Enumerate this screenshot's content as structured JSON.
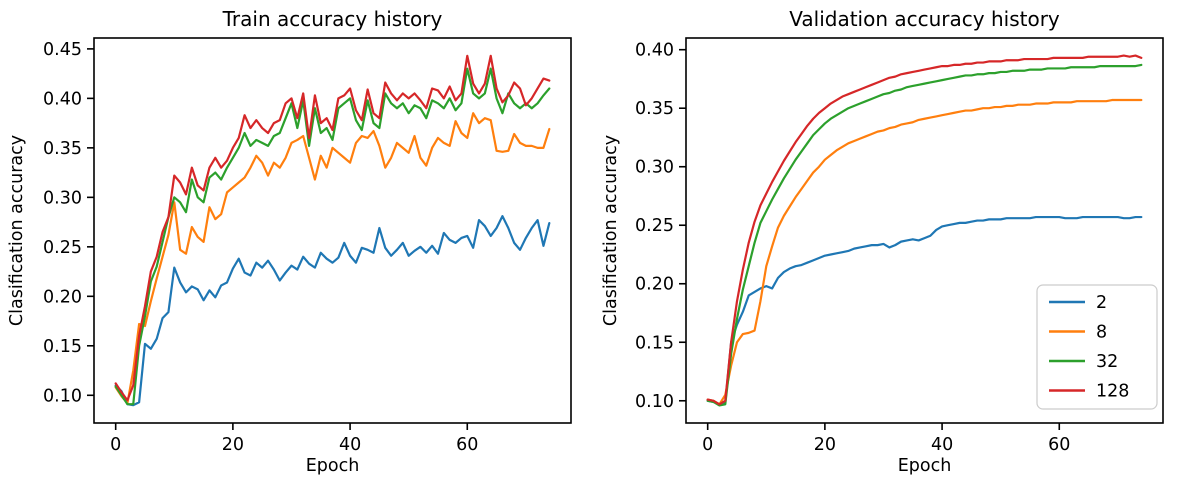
{
  "figure": {
    "background": "#ffffff",
    "text_color": "#000000",
    "spine_color": "#000000",
    "legend_border_color": "#cccccc"
  },
  "chart_data": [
    {
      "type": "line",
      "title": "Train accuracy history",
      "xlabel": "Epoch",
      "ylabel": "Clasification accuracy",
      "xlim": [
        -3.7,
        77.7
      ],
      "ylim": [
        0.072,
        0.461
      ],
      "xticks": [
        0,
        20,
        40,
        60
      ],
      "yticks": [
        0.1,
        0.15,
        0.2,
        0.25,
        0.3,
        0.35,
        0.4,
        0.45
      ],
      "grid": false,
      "legend": null,
      "x_start": 0,
      "series": [
        {
          "name": "2",
          "color": "#1f77b4",
          "values": [
            0.11,
            0.104,
            0.091,
            0.09,
            0.093,
            0.152,
            0.147,
            0.157,
            0.178,
            0.184,
            0.229,
            0.214,
            0.204,
            0.21,
            0.207,
            0.196,
            0.206,
            0.199,
            0.211,
            0.214,
            0.228,
            0.238,
            0.224,
            0.221,
            0.234,
            0.229,
            0.236,
            0.227,
            0.216,
            0.224,
            0.231,
            0.227,
            0.24,
            0.233,
            0.229,
            0.244,
            0.238,
            0.234,
            0.239,
            0.254,
            0.241,
            0.234,
            0.249,
            0.247,
            0.244,
            0.269,
            0.249,
            0.241,
            0.247,
            0.254,
            0.241,
            0.246,
            0.25,
            0.244,
            0.251,
            0.243,
            0.264,
            0.257,
            0.254,
            0.259,
            0.261,
            0.249,
            0.277,
            0.271,
            0.261,
            0.269,
            0.281,
            0.269,
            0.254,
            0.247,
            0.259,
            0.269,
            0.277,
            0.251,
            0.274
          ]
        },
        {
          "name": "8",
          "color": "#ff7f0e",
          "values": [
            0.108,
            0.099,
            0.092,
            0.125,
            0.172,
            0.17,
            0.195,
            0.218,
            0.24,
            0.262,
            0.295,
            0.247,
            0.243,
            0.27,
            0.26,
            0.255,
            0.29,
            0.278,
            0.283,
            0.305,
            0.31,
            0.315,
            0.32,
            0.33,
            0.342,
            0.335,
            0.322,
            0.335,
            0.33,
            0.34,
            0.355,
            0.358,
            0.362,
            0.34,
            0.318,
            0.342,
            0.33,
            0.35,
            0.345,
            0.34,
            0.335,
            0.355,
            0.362,
            0.36,
            0.367,
            0.352,
            0.33,
            0.34,
            0.355,
            0.35,
            0.345,
            0.362,
            0.34,
            0.332,
            0.35,
            0.36,
            0.355,
            0.352,
            0.377,
            0.365,
            0.36,
            0.385,
            0.375,
            0.38,
            0.378,
            0.347,
            0.346,
            0.347,
            0.364,
            0.355,
            0.352,
            0.352,
            0.35,
            0.35,
            0.369
          ]
        },
        {
          "name": "32",
          "color": "#2ca02c",
          "values": [
            0.109,
            0.1,
            0.091,
            0.091,
            0.15,
            0.18,
            0.215,
            0.23,
            0.255,
            0.28,
            0.3,
            0.295,
            0.285,
            0.318,
            0.3,
            0.295,
            0.32,
            0.325,
            0.318,
            0.33,
            0.34,
            0.35,
            0.365,
            0.352,
            0.358,
            0.355,
            0.352,
            0.362,
            0.365,
            0.38,
            0.395,
            0.37,
            0.398,
            0.352,
            0.39,
            0.365,
            0.37,
            0.358,
            0.39,
            0.395,
            0.4,
            0.378,
            0.368,
            0.398,
            0.375,
            0.37,
            0.405,
            0.395,
            0.39,
            0.395,
            0.385,
            0.393,
            0.39,
            0.38,
            0.398,
            0.395,
            0.39,
            0.4,
            0.388,
            0.395,
            0.43,
            0.405,
            0.4,
            0.405,
            0.43,
            0.4,
            0.385,
            0.405,
            0.395,
            0.39,
            0.395,
            0.39,
            0.395,
            0.403,
            0.41
          ]
        },
        {
          "name": "128",
          "color": "#d62728",
          "values": [
            0.112,
            0.103,
            0.095,
            0.11,
            0.16,
            0.19,
            0.225,
            0.24,
            0.265,
            0.28,
            0.322,
            0.315,
            0.303,
            0.33,
            0.312,
            0.307,
            0.33,
            0.34,
            0.33,
            0.337,
            0.35,
            0.36,
            0.383,
            0.37,
            0.378,
            0.37,
            0.365,
            0.375,
            0.378,
            0.395,
            0.4,
            0.38,
            0.405,
            0.36,
            0.403,
            0.375,
            0.38,
            0.368,
            0.4,
            0.403,
            0.41,
            0.388,
            0.378,
            0.409,
            0.385,
            0.38,
            0.416,
            0.405,
            0.398,
            0.405,
            0.4,
            0.405,
            0.398,
            0.39,
            0.41,
            0.408,
            0.4,
            0.412,
            0.398,
            0.405,
            0.443,
            0.415,
            0.405,
            0.415,
            0.443,
            0.41,
            0.396,
            0.403,
            0.416,
            0.41,
            0.393,
            0.4,
            0.41,
            0.42,
            0.418
          ]
        }
      ]
    },
    {
      "type": "line",
      "title": "Validation accuracy history",
      "xlabel": "Epoch",
      "ylabel": "Clasification accuracy",
      "xlim": [
        -3.7,
        77.7
      ],
      "ylim": [
        0.081,
        0.41
      ],
      "xticks": [
        0,
        20,
        40,
        60
      ],
      "yticks": [
        0.1,
        0.15,
        0.2,
        0.25,
        0.3,
        0.35,
        0.4
      ],
      "grid": false,
      "legend": {
        "labels": [
          "2",
          "8",
          "32",
          "128"
        ],
        "position": "lower right"
      },
      "x_start": 0,
      "series": [
        {
          "name": "2",
          "color": "#1f77b4",
          "values": [
            0.1,
            0.099,
            0.097,
            0.098,
            0.15,
            0.165,
            0.176,
            0.19,
            0.193,
            0.196,
            0.198,
            0.196,
            0.205,
            0.21,
            0.213,
            0.215,
            0.216,
            0.218,
            0.22,
            0.222,
            0.224,
            0.225,
            0.226,
            0.227,
            0.228,
            0.23,
            0.231,
            0.232,
            0.233,
            0.233,
            0.234,
            0.231,
            0.233,
            0.236,
            0.237,
            0.238,
            0.237,
            0.239,
            0.241,
            0.246,
            0.249,
            0.25,
            0.251,
            0.252,
            0.252,
            0.253,
            0.254,
            0.254,
            0.255,
            0.255,
            0.255,
            0.256,
            0.256,
            0.256,
            0.256,
            0.256,
            0.257,
            0.257,
            0.257,
            0.257,
            0.257,
            0.256,
            0.256,
            0.256,
            0.257,
            0.257,
            0.257,
            0.257,
            0.257,
            0.257,
            0.257,
            0.256,
            0.256,
            0.257,
            0.257
          ]
        },
        {
          "name": "8",
          "color": "#ff7f0e",
          "values": [
            0.101,
            0.1,
            0.097,
            0.105,
            0.13,
            0.15,
            0.157,
            0.158,
            0.16,
            0.185,
            0.215,
            0.232,
            0.248,
            0.258,
            0.266,
            0.274,
            0.281,
            0.288,
            0.295,
            0.3,
            0.306,
            0.31,
            0.314,
            0.317,
            0.32,
            0.322,
            0.324,
            0.326,
            0.328,
            0.33,
            0.331,
            0.333,
            0.334,
            0.336,
            0.337,
            0.338,
            0.34,
            0.341,
            0.342,
            0.343,
            0.344,
            0.345,
            0.346,
            0.347,
            0.348,
            0.348,
            0.349,
            0.35,
            0.35,
            0.351,
            0.351,
            0.352,
            0.352,
            0.353,
            0.353,
            0.353,
            0.354,
            0.354,
            0.354,
            0.355,
            0.355,
            0.355,
            0.355,
            0.356,
            0.356,
            0.356,
            0.356,
            0.356,
            0.356,
            0.357,
            0.357,
            0.357,
            0.357,
            0.357,
            0.357
          ]
        },
        {
          "name": "32",
          "color": "#2ca02c",
          "values": [
            0.1,
            0.099,
            0.096,
            0.097,
            0.14,
            0.17,
            0.195,
            0.215,
            0.235,
            0.252,
            0.262,
            0.272,
            0.281,
            0.29,
            0.298,
            0.306,
            0.313,
            0.32,
            0.327,
            0.332,
            0.337,
            0.341,
            0.344,
            0.347,
            0.35,
            0.352,
            0.354,
            0.356,
            0.358,
            0.36,
            0.362,
            0.363,
            0.365,
            0.366,
            0.368,
            0.369,
            0.37,
            0.371,
            0.372,
            0.373,
            0.374,
            0.375,
            0.376,
            0.377,
            0.378,
            0.378,
            0.379,
            0.379,
            0.38,
            0.38,
            0.381,
            0.381,
            0.382,
            0.382,
            0.382,
            0.383,
            0.383,
            0.383,
            0.384,
            0.384,
            0.384,
            0.384,
            0.385,
            0.385,
            0.385,
            0.385,
            0.385,
            0.386,
            0.386,
            0.386,
            0.386,
            0.386,
            0.386,
            0.386,
            0.387
          ]
        },
        {
          "name": "128",
          "color": "#d62728",
          "values": [
            0.101,
            0.1,
            0.097,
            0.1,
            0.15,
            0.185,
            0.212,
            0.235,
            0.253,
            0.267,
            0.277,
            0.287,
            0.296,
            0.305,
            0.313,
            0.321,
            0.328,
            0.335,
            0.341,
            0.346,
            0.35,
            0.354,
            0.357,
            0.36,
            0.362,
            0.364,
            0.366,
            0.368,
            0.37,
            0.372,
            0.374,
            0.376,
            0.377,
            0.379,
            0.38,
            0.381,
            0.382,
            0.383,
            0.384,
            0.385,
            0.386,
            0.386,
            0.387,
            0.387,
            0.388,
            0.388,
            0.389,
            0.389,
            0.39,
            0.39,
            0.39,
            0.391,
            0.391,
            0.391,
            0.392,
            0.392,
            0.392,
            0.392,
            0.392,
            0.393,
            0.393,
            0.393,
            0.393,
            0.393,
            0.393,
            0.394,
            0.394,
            0.394,
            0.394,
            0.394,
            0.394,
            0.395,
            0.394,
            0.395,
            0.393
          ]
        }
      ]
    }
  ]
}
